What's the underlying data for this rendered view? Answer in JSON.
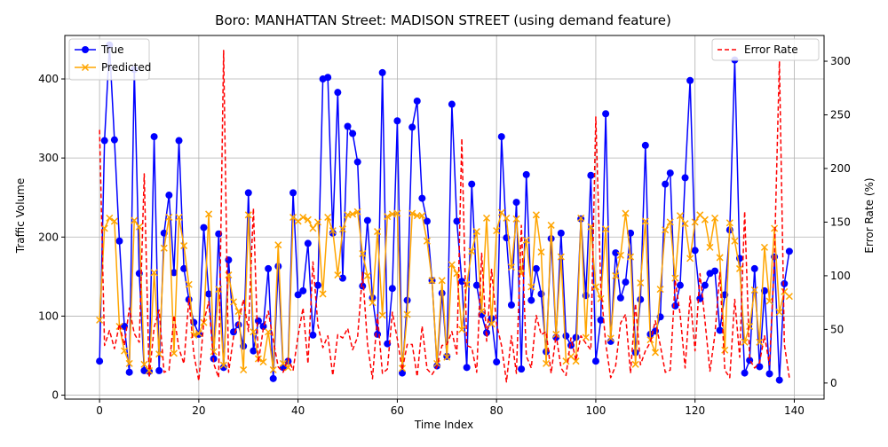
{
  "chart_data": {
    "type": "line",
    "title": "Boro: MANHATTAN Street: MADISON STREET (using demand feature)",
    "xlabel": "Time Index",
    "ylabel": "Traffic Volume",
    "y2label": "Error Rate (%)",
    "xlim": [
      -7,
      146
    ],
    "ylim": [
      -5,
      455
    ],
    "y2lim": [
      -15,
      324
    ],
    "xticks": [
      0,
      20,
      40,
      60,
      80,
      100,
      120,
      140
    ],
    "yticks": [
      0,
      100,
      200,
      300,
      400
    ],
    "y2ticks": [
      0,
      50,
      100,
      150,
      200,
      250,
      300
    ],
    "grid": true,
    "legend_left": "top-left",
    "legend_right": "top-right",
    "colors": {
      "true": "#0000ff",
      "predicted": "#ffa500",
      "error": "#ff0000",
      "grid": "#b0b0b0"
    },
    "series": [
      {
        "name": "True",
        "axis": "left",
        "color": "#0000ff",
        "marker": "circle",
        "values": [
          43,
          322,
          443,
          323,
          195,
          87,
          29,
          412,
          154,
          31,
          30,
          327,
          31,
          205,
          253,
          155,
          322,
          160,
          121,
          92,
          77,
          212,
          128,
          46,
          204,
          35,
          171,
          80,
          89,
          62,
          256,
          56,
          94,
          87,
          160,
          21,
          163,
          35,
          43,
          256,
          127,
          132,
          192,
          76,
          139,
          400,
          402,
          205,
          383,
          148,
          340,
          331,
          295,
          138,
          221,
          123,
          77,
          408,
          65,
          135,
          347,
          28,
          120,
          339,
          372,
          249,
          220,
          145,
          37,
          129,
          49,
          368,
          220,
          144,
          35,
          267,
          139,
          102,
          79,
          97,
          42,
          327,
          199,
          114,
          244,
          33,
          279,
          120,
          160,
          128,
          55,
          198,
          73,
          205,
          75,
          63,
          73,
          223,
          126,
          278,
          43,
          95,
          356,
          68,
          180,
          123,
          143,
          205,
          54,
          121,
          316,
          77,
          81,
          99,
          267,
          281,
          113,
          139,
          275,
          398,
          183,
          122,
          139,
          154,
          157,
          82,
          127,
          209,
          424,
          173,
          28,
          44,
          160,
          36,
          132,
          27,
          175,
          19,
          141,
          182
        ]
      },
      {
        "name": "Predicted",
        "axis": "left",
        "color": "#ffa500",
        "marker": "x",
        "values": [
          95,
          211,
          224,
          220,
          87,
          56,
          40,
          221,
          213,
          39,
          31,
          155,
          52,
          186,
          225,
          53,
          225,
          189,
          140,
          76,
          78,
          92,
          229,
          55,
          134,
          38,
          152,
          118,
          106,
          32,
          228,
          80,
          46,
          42,
          80,
          32,
          190,
          40,
          35,
          225,
          220,
          225,
          222,
          211,
          219,
          128,
          225,
          208,
          152,
          210,
          228,
          229,
          232,
          179,
          151,
          117,
          207,
          101,
          226,
          229,
          230,
          34,
          102,
          230,
          227,
          227,
          195,
          145,
          40,
          145,
          48,
          165,
          154,
          83,
          140,
          182,
          207,
          106,
          224,
          90,
          208,
          231,
          224,
          162,
          223,
          154,
          196,
          137,
          228,
          181,
          40,
          215,
          77,
          175,
          43,
          49,
          43,
          224,
          73,
          213,
          137,
          122,
          210,
          72,
          151,
          177,
          230,
          175,
          39,
          142,
          220,
          70,
          54,
          134,
          209,
          219,
          148,
          227,
          217,
          173,
          219,
          228,
          222,
          187,
          224,
          174,
          57,
          218,
          195,
          160,
          67,
          87,
          133,
          67,
          187,
          119,
          211,
          105,
          131,
          125
        ]
      },
      {
        "name": "Error Rate",
        "axis": "right",
        "color": "#ff0000",
        "marker": "dashed",
        "values": [
          236,
          35,
          49,
          32,
          55,
          35,
          70,
          46,
          38,
          195,
          5,
          52,
          68,
          10,
          12,
          63,
          32,
          18,
          79,
          27,
          2,
          57,
          76,
          18,
          5,
          310,
          10,
          43,
          57,
          78,
          48,
          163,
          19,
          51,
          67,
          40,
          15,
          10,
          23,
          12,
          44,
          70,
          18,
          113,
          54,
          33,
          44,
          7,
          45,
          42,
          51,
          31,
          43,
          103,
          36,
          4,
          64,
          9,
          13,
          66,
          41,
          12,
          36,
          36,
          6,
          53,
          13,
          8,
          15,
          35,
          36,
          48,
          27,
          228,
          35,
          33,
          10,
          121,
          39,
          106,
          55,
          35,
          1,
          44,
          9,
          147,
          25,
          14,
          63,
          45,
          48,
          9,
          45,
          14,
          7,
          42,
          21,
          44,
          37,
          31,
          248,
          90,
          37,
          5,
          16,
          56,
          64,
          9,
          74,
          17,
          30,
          38,
          58,
          35,
          10,
          12,
          96,
          64,
          14,
          81,
          30,
          102,
          58,
          11,
          45,
          103,
          12,
          5,
          78,
          24,
          160,
          22,
          14,
          19,
          44,
          17,
          117,
          300,
          36,
          5
        ]
      }
    ]
  }
}
